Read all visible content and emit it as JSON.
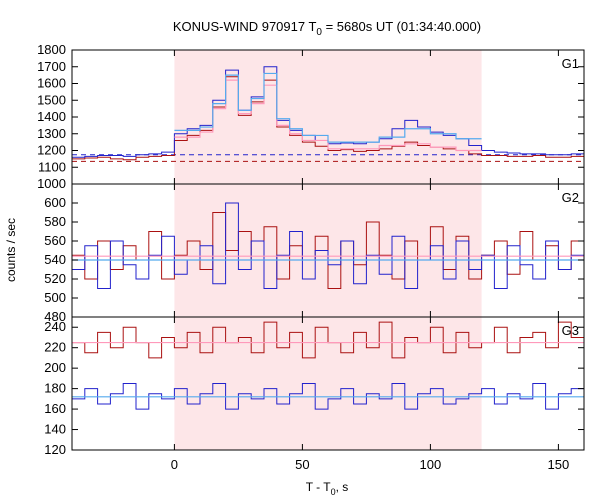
{
  "chart_data": {
    "type": "line",
    "title_prefix": "KONUS-WIND 970917 T",
    "title_sub": "0",
    "title_suffix": " = 5680s UT (01:34:40.000)",
    "xlabel_prefix": "T - T",
    "xlabel_sub": "0",
    "xlabel_suffix": ", s",
    "ylabel": "counts / sec",
    "xlim": [
      -40,
      160
    ],
    "xticks": [
      0,
      50,
      100,
      150
    ],
    "highlight_interval": [
      0,
      120
    ],
    "colors": {
      "red": "#aa1111",
      "blue": "#2222cc",
      "fit_red": "#ff99bb",
      "fit_blue": "#55aaee",
      "shade": "#fde6e8"
    },
    "panels": [
      {
        "name": "G1",
        "ylim": [
          1000,
          1800
        ],
        "yticks": [
          1000,
          1100,
          1200,
          1300,
          1400,
          1500,
          1600,
          1700,
          1800
        ],
        "background_levels": {
          "red": 1135,
          "blue": 1175
        },
        "series": [
          {
            "color": "red",
            "style": "step",
            "x": [
              -40,
              -35,
              -30,
              -25,
              -20,
              -15,
              -10,
              -5,
              0,
              5,
              10,
              15,
              20,
              25,
              30,
              35,
              40,
              45,
              50,
              55,
              60,
              65,
              70,
              75,
              80,
              85,
              90,
              95,
              100,
              105,
              110,
              115,
              120,
              125,
              130,
              135,
              140,
              145,
              150,
              155,
              160
            ],
            "y": [
              1150,
              1155,
              1160,
              1150,
              1145,
              1160,
              1165,
              1170,
              1260,
              1290,
              1320,
              1460,
              1640,
              1410,
              1490,
              1620,
              1340,
              1290,
              1250,
              1225,
              1200,
              1205,
              1195,
              1200,
              1210,
              1225,
              1250,
              1230,
              1220,
              1210,
              1200,
              1180,
              1170,
              1170,
              1165,
              1165,
              1170,
              1160,
              1160,
              1165,
              1170
            ]
          },
          {
            "color": "blue",
            "style": "step",
            "x": [
              -40,
              -35,
              -30,
              -25,
              -20,
              -15,
              -10,
              -5,
              0,
              5,
              10,
              15,
              20,
              25,
              30,
              35,
              40,
              45,
              50,
              55,
              60,
              65,
              70,
              75,
              80,
              85,
              90,
              95,
              100,
              105,
              110,
              115,
              120,
              125,
              130,
              135,
              140,
              145,
              150,
              155,
              160
            ],
            "y": [
              1160,
              1165,
              1170,
              1170,
              1165,
              1175,
              1180,
              1190,
              1300,
              1330,
              1350,
              1500,
              1680,
              1440,
              1520,
              1700,
              1380,
              1320,
              1290,
              1260,
              1240,
              1245,
              1240,
              1250,
              1270,
              1330,
              1380,
              1340,
              1310,
              1290,
              1270,
              1230,
              1200,
              1190,
              1185,
              1180,
              1180,
              1175,
              1175,
              1180,
              1180
            ]
          },
          {
            "color": "fit_red",
            "style": "step",
            "x": [
              0,
              10,
              15,
              20,
              25,
              30,
              35,
              40,
              45,
              50,
              60,
              70,
              80,
              90,
              100,
              110,
              120
            ],
            "y": [
              1280,
              1310,
              1450,
              1620,
              1420,
              1480,
              1590,
              1350,
              1300,
              1260,
              1210,
              1210,
              1230,
              1240,
              1220,
              1200,
              1180
            ]
          },
          {
            "color": "fit_blue",
            "style": "step",
            "x": [
              0,
              10,
              15,
              20,
              25,
              30,
              35,
              40,
              45,
              50,
              60,
              70,
              80,
              90,
              100,
              110,
              120
            ],
            "y": [
              1320,
              1340,
              1480,
              1650,
              1440,
              1510,
              1660,
              1390,
              1330,
              1290,
              1250,
              1250,
              1280,
              1330,
              1300,
              1270,
              1230
            ]
          }
        ]
      },
      {
        "name": "G2",
        "ylim": [
          480,
          620
        ],
        "yticks": [
          480,
          500,
          520,
          540,
          560,
          580,
          600
        ],
        "series": [
          {
            "color": "red",
            "style": "step",
            "x": [
              -40,
              -35,
              -30,
              -25,
              -20,
              -15,
              -10,
              -5,
              0,
              5,
              10,
              15,
              20,
              25,
              30,
              35,
              40,
              45,
              50,
              55,
              60,
              65,
              70,
              75,
              80,
              85,
              90,
              95,
              100,
              105,
              110,
              115,
              120,
              125,
              130,
              135,
              140,
              145,
              150,
              155,
              160
            ],
            "y": [
              545,
              520,
              560,
              530,
              555,
              540,
              570,
              520,
              545,
              560,
              530,
              590,
              550,
              570,
              540,
              575,
              520,
              555,
              540,
              565,
              510,
              560,
              535,
              580,
              545,
              520,
              560,
              540,
              575,
              530,
              565,
              520,
              545,
              560,
              525,
              570,
              540,
              555,
              530,
              560,
              545
            ]
          },
          {
            "color": "blue",
            "style": "step",
            "x": [
              -40,
              -35,
              -30,
              -25,
              -20,
              -15,
              -10,
              -5,
              0,
              5,
              10,
              15,
              20,
              25,
              30,
              35,
              40,
              45,
              50,
              55,
              60,
              65,
              70,
              75,
              80,
              85,
              90,
              95,
              100,
              105,
              110,
              115,
              120,
              125,
              130,
              135,
              140,
              145,
              150,
              155,
              160
            ],
            "y": [
              530,
              555,
              510,
              560,
              535,
              520,
              545,
              565,
              525,
              540,
              555,
              515,
              600,
              530,
              560,
              510,
              545,
              570,
              520,
              550,
              535,
              560,
              515,
              545,
              525,
              565,
              510,
              540,
              555,
              520,
              560,
              530,
              545,
              510,
              555,
              535,
              520,
              560,
              530,
              545,
              540
            ]
          },
          {
            "color": "fit_red",
            "style": "flat",
            "x": [
              -40,
              160
            ],
            "y": [
              544,
              544
            ]
          },
          {
            "color": "fit_blue",
            "style": "flat",
            "x": [
              -40,
              160
            ],
            "y": [
              540,
              540
            ]
          }
        ]
      },
      {
        "name": "G3",
        "ylim": [
          120,
          250
        ],
        "yticks": [
          120,
          140,
          160,
          180,
          200,
          220,
          240
        ],
        "series": [
          {
            "color": "red",
            "style": "step",
            "x": [
              -40,
              -35,
              -30,
              -25,
              -20,
              -15,
              -10,
              -5,
              0,
              5,
              10,
              15,
              20,
              25,
              30,
              35,
              40,
              45,
              50,
              55,
              60,
              65,
              70,
              75,
              80,
              85,
              90,
              95,
              100,
              105,
              110,
              115,
              120,
              125,
              130,
              135,
              140,
              145,
              150,
              155,
              160
            ],
            "y": [
              225,
              215,
              235,
              220,
              240,
              225,
              210,
              230,
              220,
              235,
              215,
              240,
              225,
              230,
              215,
              245,
              220,
              235,
              210,
              240,
              225,
              215,
              235,
              220,
              245,
              210,
              230,
              225,
              240,
              215,
              235,
              220,
              225,
              240,
              215,
              230,
              235,
              220,
              245,
              230,
              240
            ]
          },
          {
            "color": "blue",
            "style": "step",
            "x": [
              -40,
              -35,
              -30,
              -25,
              -20,
              -15,
              -10,
              -5,
              0,
              5,
              10,
              15,
              20,
              25,
              30,
              35,
              40,
              45,
              50,
              55,
              60,
              65,
              70,
              75,
              80,
              85,
              90,
              95,
              100,
              105,
              110,
              115,
              120,
              125,
              130,
              135,
              140,
              145,
              150,
              155,
              160
            ],
            "y": [
              170,
              180,
              165,
              175,
              185,
              160,
              175,
              170,
              180,
              165,
              175,
              185,
              160,
              175,
              170,
              180,
              165,
              175,
              185,
              160,
              170,
              180,
              165,
              175,
              170,
              185,
              160,
              175,
              180,
              165,
              170,
              175,
              180,
              165,
              175,
              170,
              185,
              160,
              175,
              180,
              170
            ]
          },
          {
            "color": "fit_red",
            "style": "flat",
            "x": [
              -40,
              160
            ],
            "y": [
              225,
              225
            ]
          },
          {
            "color": "fit_blue",
            "style": "flat",
            "x": [
              -40,
              160
            ],
            "y": [
              172,
              172
            ]
          }
        ]
      }
    ]
  }
}
